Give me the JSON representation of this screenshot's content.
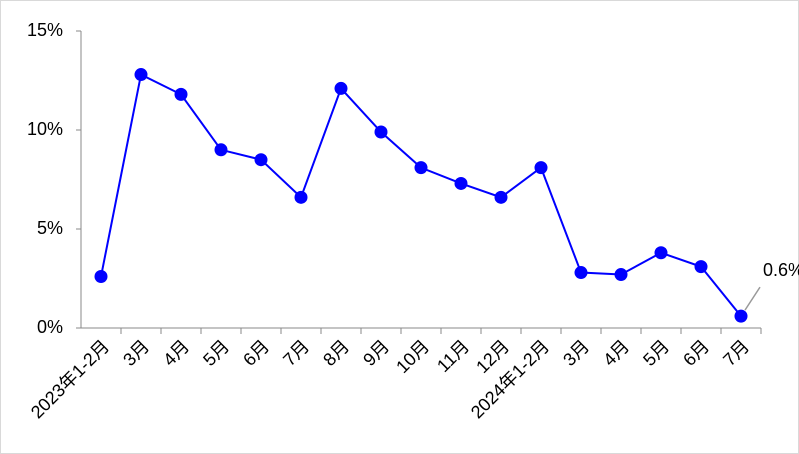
{
  "chart_data": {
    "type": "line",
    "categories": [
      "2023年1-2月",
      "3月",
      "4月",
      "5月",
      "6月",
      "7月",
      "8月",
      "9月",
      "10月",
      "11月",
      "12月",
      "2024年1-2月",
      "3月",
      "4月",
      "5月",
      "6月",
      "7月"
    ],
    "series": [
      {
        "color": "#0000ff",
        "values": [
          2.6,
          12.8,
          11.8,
          9.0,
          8.5,
          6.6,
          12.1,
          9.9,
          8.1,
          7.3,
          6.6,
          8.1,
          2.8,
          2.7,
          3.8,
          3.1,
          0.6
        ],
        "value_labels": [
          null,
          null,
          null,
          null,
          null,
          null,
          null,
          null,
          null,
          null,
          null,
          null,
          null,
          null,
          null,
          null,
          "0.6%"
        ]
      }
    ],
    "ylim": [
      0,
      15
    ],
    "yticks": [
      {
        "value": 0,
        "label": "0%"
      },
      {
        "value": 5,
        "label": "5%"
      },
      {
        "value": 10,
        "label": "10%"
      },
      {
        "value": 15,
        "label": "15%"
      }
    ],
    "grid": false
  }
}
